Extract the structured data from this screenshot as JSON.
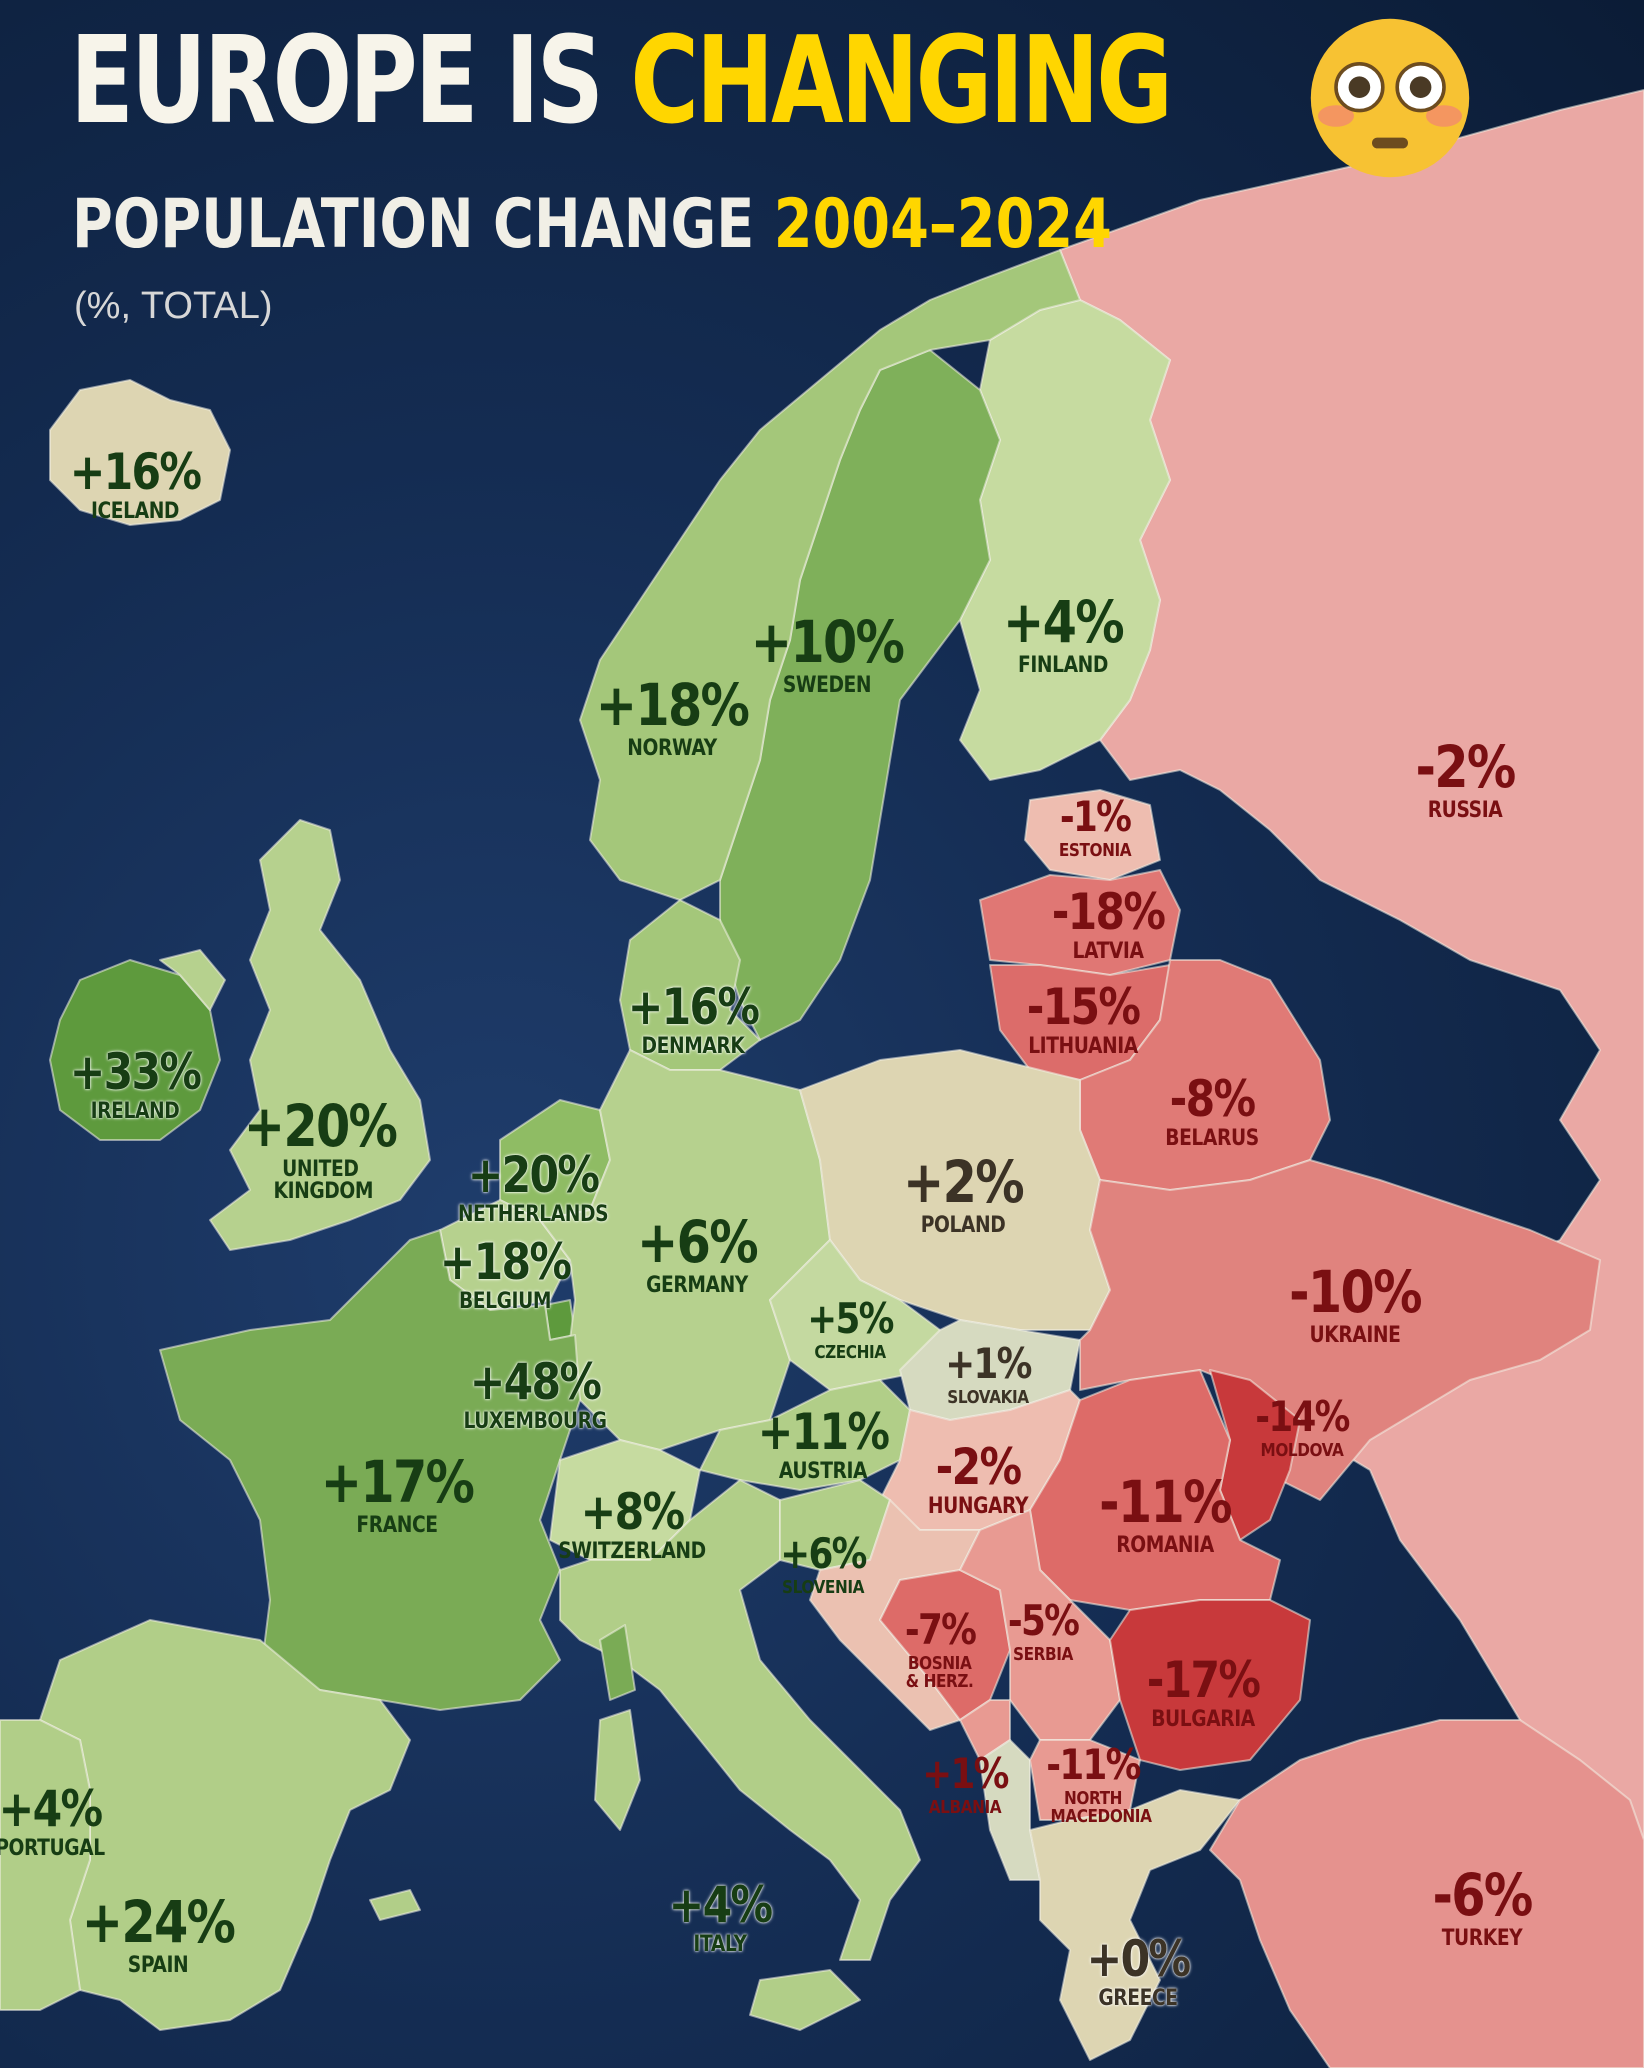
{
  "header": {
    "title_part1": "EUROPE IS ",
    "title_highlight": "CHANGING",
    "emoji": "flushed-face-emoji",
    "subtitle_part1": "POPULATION CHANGE ",
    "subtitle_highlight": "2004–2024",
    "units": "(%, TOTAL)"
  },
  "colors": {
    "sea": "#142c52",
    "positive_strong": "#5e9a3d",
    "positive_mid": "#8fb963",
    "positive_light": "#b8d08e",
    "neutral": "#ddd5b2",
    "negative_light": "#eaa8a4",
    "negative_mid": "#dd6b68",
    "negative_strong": "#c8393b",
    "highlight_yellow": "#ffd600"
  },
  "countries": [
    {
      "id": "iceland",
      "name": "ICELAND",
      "change": "+16%"
    },
    {
      "id": "norway",
      "name": "NORWAY",
      "change": "+18%"
    },
    {
      "id": "sweden",
      "name": "SWEDEN",
      "change": "+10%"
    },
    {
      "id": "finland",
      "name": "FINLAND",
      "change": "+4%"
    },
    {
      "id": "russia",
      "name": "RUSSIA",
      "change": "-2%"
    },
    {
      "id": "estonia",
      "name": "ESTONIA",
      "change": "-1%"
    },
    {
      "id": "latvia",
      "name": "LATVIA",
      "change": "-18%"
    },
    {
      "id": "lithuania",
      "name": "LITHUANIA",
      "change": "-15%"
    },
    {
      "id": "belarus",
      "name": "BELARUS",
      "change": "-8%"
    },
    {
      "id": "denmark",
      "name": "DENMARK",
      "change": "+16%"
    },
    {
      "id": "ireland",
      "name": "IRELAND",
      "change": "+33%"
    },
    {
      "id": "united_kingdom",
      "name": "UNITED KINGDOM",
      "change": "+20%"
    },
    {
      "id": "netherlands",
      "name": "NETHERLANDS",
      "change": "+20%"
    },
    {
      "id": "belgium",
      "name": "BELGIUM",
      "change": "+18%"
    },
    {
      "id": "luxembourg",
      "name": "LUXEMBOURG",
      "change": "+48%"
    },
    {
      "id": "germany",
      "name": "GERMANY",
      "change": "+6%"
    },
    {
      "id": "poland",
      "name": "POLAND",
      "change": "+2%"
    },
    {
      "id": "czechia",
      "name": "CZECHIA",
      "change": "+5%"
    },
    {
      "id": "slovakia",
      "name": "SLOVAKIA",
      "change": "+1%"
    },
    {
      "id": "ukraine",
      "name": "UKRAINE",
      "change": "-10%"
    },
    {
      "id": "moldova",
      "name": "MOLDOVA",
      "change": "-14%"
    },
    {
      "id": "austria",
      "name": "AUSTRIA",
      "change": "+11%"
    },
    {
      "id": "hungary",
      "name": "HUNGARY",
      "change": "-2%"
    },
    {
      "id": "romania",
      "name": "ROMANIA",
      "change": "-11%"
    },
    {
      "id": "france",
      "name": "FRANCE",
      "change": "+17%"
    },
    {
      "id": "switzerland",
      "name": "SWITZERLAND",
      "change": "+8%"
    },
    {
      "id": "slovenia",
      "name": "SLOVENIA",
      "change": "+6%"
    },
    {
      "id": "bosnia",
      "name": "BOSNIA & HERZ.",
      "change": "-7%"
    },
    {
      "id": "serbia",
      "name": "SERBIA",
      "change": "-5%"
    },
    {
      "id": "bulgaria",
      "name": "BULGARIA",
      "change": "-17%"
    },
    {
      "id": "albania",
      "name": "ALBANIA",
      "change": "+1%"
    },
    {
      "id": "north_macedonia",
      "name": "NORTH MACEDONIA",
      "change": "-11%"
    },
    {
      "id": "portugal",
      "name": "PORTUGAL",
      "change": "+4%"
    },
    {
      "id": "spain",
      "name": "SPAIN",
      "change": "+24%"
    },
    {
      "id": "italy",
      "name": "ITALY",
      "change": "+4%"
    },
    {
      "id": "greece",
      "name": "GREECE",
      "change": "+0%"
    },
    {
      "id": "turkey",
      "name": "TURKEY",
      "change": "-6%"
    }
  ]
}
